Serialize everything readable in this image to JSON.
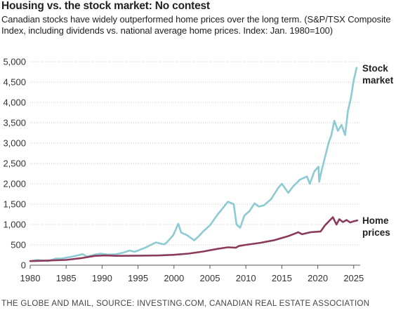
{
  "title": "Housing vs. the stock market: No contest",
  "subtitle": "Canadian stocks have widely outperformed home prices over the long term. (S&P/TSX Composite Index, including dividends vs. national average home prices. Index: Jan. 1980=100)",
  "source": "THE GLOBE AND MAIL, SOURCE: INVESTING.COM, CANADIAN REAL ESTATE ASSOCIATION",
  "colors": {
    "stock": "#8ccbd3",
    "home": "#8c3a5c",
    "grid": "#c9c9c9",
    "axis": "#555555"
  },
  "chart_data": {
    "type": "line",
    "title": "Housing vs. the stock market: No contest",
    "xlabel": "",
    "ylabel": "",
    "xlim": [
      1980,
      2025.9
    ],
    "ylim": [
      0,
      5000
    ],
    "x_ticks": [
      "1980",
      "1985",
      "1990",
      "1995",
      "2000",
      "2005",
      "2010",
      "2015",
      "2020",
      "2025"
    ],
    "y_ticks": [
      "0",
      "500",
      "1,000",
      "1,500",
      "2,000",
      "2,500",
      "3,000",
      "3,500",
      "4,000",
      "4,500",
      "5,000"
    ],
    "grid": true,
    "series": [
      {
        "name": "Stock market",
        "label_lines": [
          "Stock",
          "market"
        ],
        "x": [
          1980,
          1981,
          1981.6,
          1982.5,
          1983.5,
          1984.5,
          1985,
          1986,
          1987.3,
          1987.9,
          1989,
          1989.8,
          1990.8,
          1992,
          1993,
          1993.8,
          1994.5,
          1995,
          1996,
          1997.5,
          1998.6,
          1999,
          1999.9,
          2000.6,
          2001,
          2001.8,
          2002.8,
          2003.5,
          2004,
          2005,
          2006,
          2007,
          2007.5,
          2008.3,
          2008.7,
          2009.2,
          2009.8,
          2010.5,
          2011.2,
          2011.8,
          2012.5,
          2013.5,
          2014.5,
          2015,
          2015.9,
          2016.5,
          2017.5,
          2018.5,
          2018.9,
          2019.5,
          2020.1,
          2020.2,
          2020.5,
          2021,
          2021.5,
          2021.9,
          2022.3,
          2022.8,
          2023.3,
          2023.8,
          2024.2,
          2024.6,
          2025,
          2025.4
        ],
        "values": [
          100,
          130,
          115,
          100,
          160,
          165,
          185,
          215,
          270,
          210,
          260,
          285,
          260,
          270,
          310,
          360,
          330,
          360,
          430,
          560,
          510,
          560,
          740,
          1020,
          800,
          740,
          610,
          720,
          820,
          980,
          1230,
          1450,
          1560,
          1500,
          1000,
          920,
          1220,
          1330,
          1520,
          1440,
          1470,
          1620,
          1900,
          2000,
          1780,
          1920,
          2100,
          2180,
          2000,
          2300,
          2420,
          2050,
          2300,
          2650,
          3000,
          3200,
          3550,
          3300,
          3450,
          3200,
          3800,
          4100,
          4550,
          4850
        ]
      },
      {
        "name": "Home prices",
        "label_lines": [
          "Home",
          "prices"
        ],
        "x": [
          1980,
          1982,
          1983.5,
          1985,
          1987,
          1989,
          1990.5,
          1992,
          1995,
          1998,
          2000,
          2002,
          2004,
          2006,
          2007.5,
          2008.6,
          2009,
          2010,
          2012,
          2014,
          2016,
          2017.3,
          2017.8,
          2019,
          2020.4,
          2021,
          2022.1,
          2022.6,
          2023,
          2023.5,
          2024,
          2024.5,
          2025,
          2025.5
        ],
        "values": [
          100,
          110,
          120,
          130,
          170,
          230,
          240,
          230,
          235,
          240,
          255,
          285,
          335,
          400,
          440,
          430,
          470,
          500,
          550,
          615,
          720,
          810,
          760,
          810,
          830,
          980,
          1180,
          1000,
          1130,
          1060,
          1110,
          1050,
          1080,
          1100
        ]
      }
    ]
  }
}
